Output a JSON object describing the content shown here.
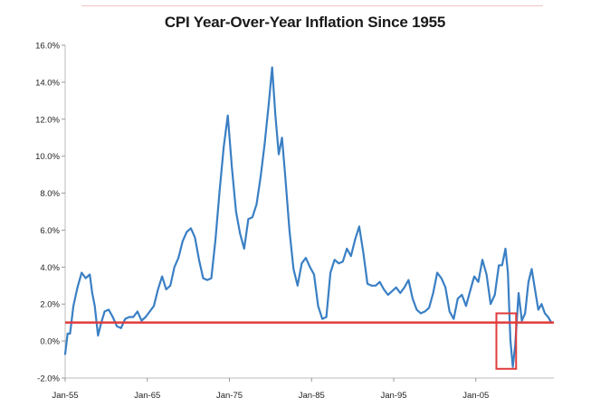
{
  "chart_data": {
    "type": "line",
    "title": "CPI Year-Over-Year Inflation Since 1955",
    "xlabel": "",
    "ylabel": "",
    "ylim": [
      -2.0,
      16.0
    ],
    "xlim": [
      1955.0,
      2014.5
    ],
    "grid": false,
    "legend": "none",
    "y_ticks": [
      "16.0%",
      "14.0%",
      "12.0%",
      "10.0%",
      "8.0%",
      "6.0%",
      "4.0%",
      "2.0%",
      "0.0%",
      "-2.0%"
    ],
    "y_tick_values": [
      16,
      14,
      12,
      10,
      8,
      6,
      4,
      2,
      0,
      -2
    ],
    "x_ticks": [
      "Jan-55",
      "Jan-65",
      "Jan-75",
      "Jan-85",
      "Jan-95",
      "Jan-05"
    ],
    "x_tick_values": [
      1955,
      1965,
      1975,
      1985,
      1995,
      2005
    ],
    "series": [
      {
        "color": "#3a7fc4",
        "x": [
          1955.0,
          1955.3,
          1955.6,
          1956.0,
          1956.5,
          1957.0,
          1957.5,
          1958.0,
          1958.3,
          1958.6,
          1959.0,
          1959.4,
          1959.8,
          1960.3,
          1960.8,
          1961.3,
          1961.8,
          1962.3,
          1962.8,
          1963.3,
          1963.8,
          1964.3,
          1964.8,
          1965.3,
          1965.8,
          1966.3,
          1966.8,
          1967.3,
          1967.8,
          1968.3,
          1968.8,
          1969.3,
          1969.8,
          1970.3,
          1970.8,
          1971.3,
          1971.8,
          1972.3,
          1972.8,
          1973.3,
          1973.8,
          1974.3,
          1974.8,
          1975.3,
          1975.8,
          1976.3,
          1976.8,
          1977.3,
          1977.8,
          1978.3,
          1978.8,
          1979.3,
          1979.8,
          1980.2,
          1980.6,
          1981.0,
          1981.4,
          1981.8,
          1982.3,
          1982.8,
          1983.3,
          1983.8,
          1984.3,
          1984.8,
          1985.3,
          1985.8,
          1986.3,
          1986.8,
          1987.3,
          1987.8,
          1988.3,
          1988.8,
          1989.3,
          1989.8,
          1990.3,
          1990.8,
          1991.3,
          1991.8,
          1992.3,
          1992.8,
          1993.3,
          1993.8,
          1994.3,
          1994.8,
          1995.3,
          1995.8,
          1996.3,
          1996.8,
          1997.3,
          1997.8,
          1998.3,
          1998.8,
          1999.3,
          1999.8,
          2000.3,
          2000.8,
          2001.3,
          2001.8,
          2002.3,
          2002.8,
          2003.3,
          2003.8,
          2004.3,
          2004.8,
          2005.3,
          2005.8,
          2006.3,
          2006.8,
          2007.3,
          2007.8,
          2008.2,
          2008.6,
          2008.9,
          2009.2,
          2009.5,
          2009.8,
          2010.2,
          2010.6,
          2011.0,
          2011.4,
          2011.8,
          2012.2,
          2012.6,
          2013.0,
          2013.4,
          2013.8,
          2014.2
        ],
        "y": [
          -0.7,
          0.4,
          0.4,
          1.9,
          2.9,
          3.7,
          3.4,
          3.6,
          2.6,
          1.9,
          0.3,
          1.0,
          1.6,
          1.7,
          1.3,
          0.8,
          0.7,
          1.2,
          1.3,
          1.3,
          1.6,
          1.1,
          1.3,
          1.6,
          1.9,
          2.8,
          3.5,
          2.8,
          3.0,
          4.0,
          4.5,
          5.4,
          5.9,
          6.1,
          5.6,
          4.4,
          3.4,
          3.3,
          3.4,
          5.5,
          8.1,
          10.5,
          12.2,
          9.4,
          7.0,
          5.8,
          5.0,
          6.6,
          6.7,
          7.4,
          8.9,
          10.7,
          12.9,
          14.8,
          12.2,
          10.1,
          11.0,
          8.9,
          6.0,
          3.9,
          3.0,
          4.2,
          4.5,
          4.0,
          3.6,
          1.9,
          1.2,
          1.3,
          3.7,
          4.4,
          4.2,
          4.3,
          5.0,
          4.6,
          5.5,
          6.2,
          4.8,
          3.1,
          3.0,
          3.0,
          3.2,
          2.8,
          2.5,
          2.7,
          2.9,
          2.6,
          2.9,
          3.3,
          2.3,
          1.7,
          1.5,
          1.6,
          1.8,
          2.6,
          3.7,
          3.4,
          2.9,
          1.6,
          1.2,
          2.3,
          2.5,
          1.9,
          2.7,
          3.5,
          3.2,
          4.4,
          3.6,
          2.0,
          2.5,
          4.1,
          4.1,
          5.0,
          3.7,
          0.1,
          -1.4,
          -0.2,
          2.6,
          1.1,
          1.5,
          3.2,
          3.9,
          2.8,
          1.7,
          2.0,
          1.5,
          1.3,
          1.0
        ]
      }
    ],
    "reference_line": {
      "y": 1.0,
      "color": "#e03c3c"
    },
    "highlight_box": {
      "x_range": [
        2007.5,
        2009.9
      ],
      "y_range": [
        -1.5,
        1.5
      ],
      "color": "#e03c3c"
    }
  }
}
